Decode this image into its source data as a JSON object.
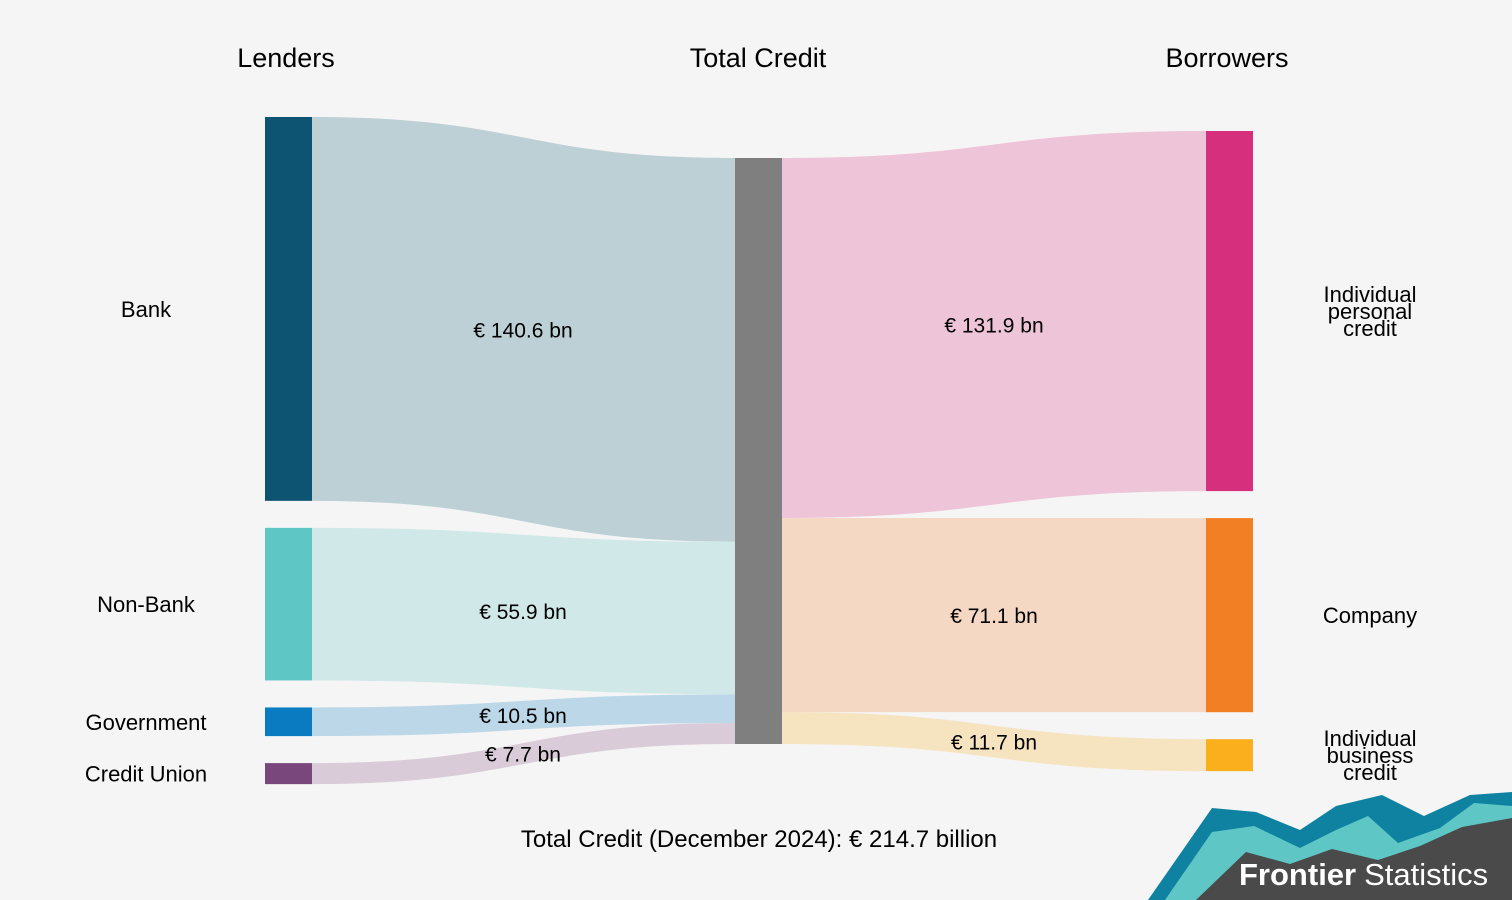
{
  "headers": {
    "lenders": "Lenders",
    "total": "Total Credit",
    "borrowers": "Borrowers"
  },
  "footer": "Total Credit (December 2024): € 214.7 billion",
  "brand": {
    "bold": "Frontier",
    "regular": "Statistics"
  },
  "chart_data": {
    "type": "sankey",
    "unit": "€ bn",
    "total": 214.7,
    "middle_node": {
      "name": "Total Credit",
      "color": "#7f7f7f"
    },
    "sources": [
      {
        "name": "Bank",
        "value": 140.6,
        "label": "€ 140.6 bn",
        "color": "#0d5372",
        "flow_color": "#bcd0d6"
      },
      {
        "name": "Non-Bank",
        "value": 55.9,
        "label": "€ 55.9 bn",
        "color": "#5ec7c5",
        "flow_color": "#d1e8e8"
      },
      {
        "name": "Government",
        "value": 10.5,
        "label": "€ 10.5 bn",
        "color": "#0a7bc1",
        "flow_color": "#bcd8e8"
      },
      {
        "name": "Credit Union",
        "value": 7.7,
        "label": "€ 7.7 bn",
        "color": "#7a477c",
        "flow_color": "#dacbd8"
      }
    ],
    "targets": [
      {
        "name": "Individual personal credit",
        "lines": [
          "Individual",
          "personal",
          "credit"
        ],
        "value": 131.9,
        "label": "€ 131.9 bn",
        "color": "#d52f7d",
        "flow_color": "#eec4d8"
      },
      {
        "name": "Company",
        "lines": [
          "Company"
        ],
        "value": 71.1,
        "label": "€ 71.1 bn",
        "color": "#f37f24",
        "flow_color": "#f5d8c3"
      },
      {
        "name": "Individual business credit",
        "lines": [
          "Individual",
          "business",
          "credit"
        ],
        "value": 11.7,
        "label": "€ 11.7 bn",
        "color": "#fbaf1d",
        "flow_color": "#f6e3c0"
      }
    ]
  }
}
